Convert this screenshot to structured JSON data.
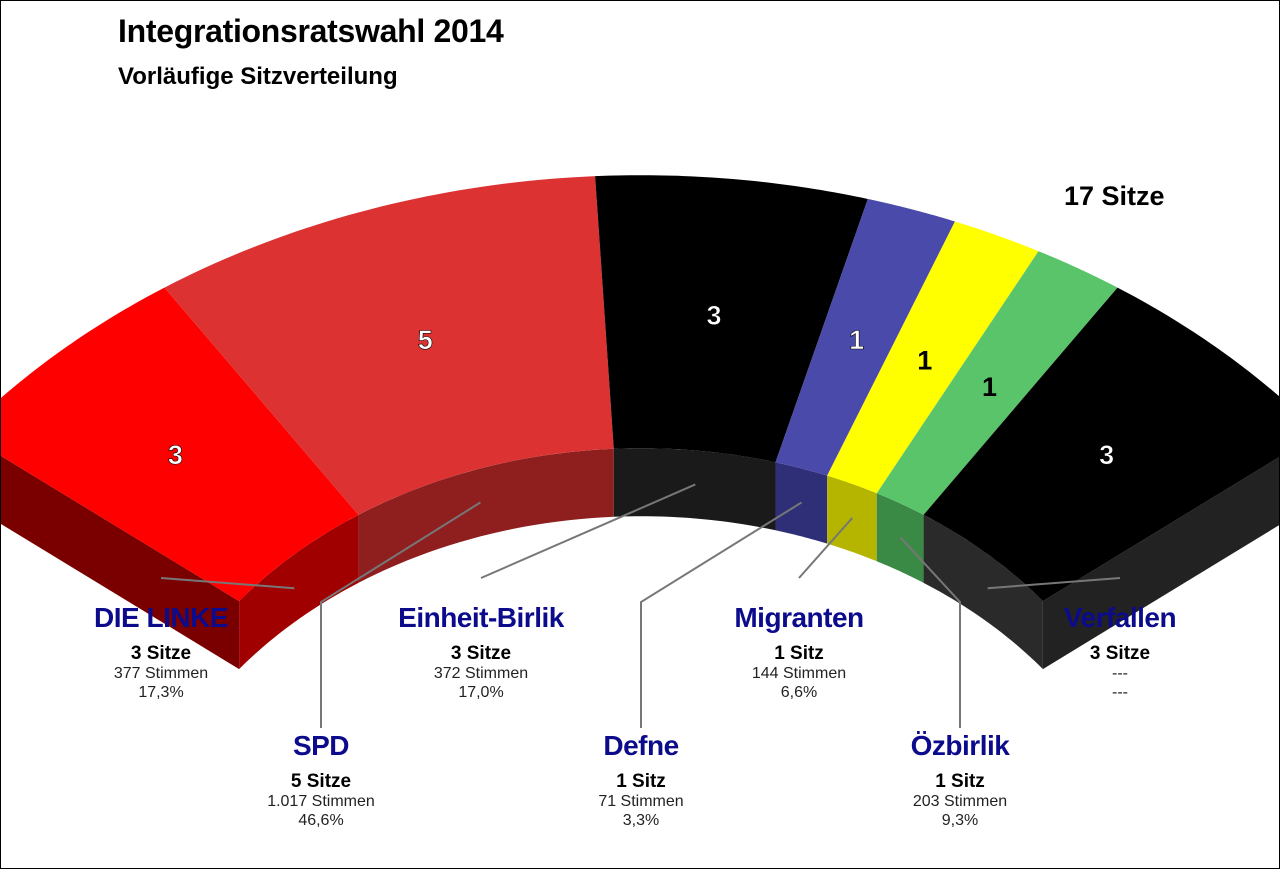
{
  "title": "Integrationsratswahl 2014",
  "subtitle": "Vorläufige Sitzverteilung",
  "total_seats_label": "17 Sitze",
  "chart_data": {
    "type": "pie",
    "title": "Integrationsratswahl 2014",
    "subtitle": "Vorläufige Sitzverteilung",
    "total": 17,
    "categories": [
      "DIE LINKE",
      "SPD",
      "Einheit-Birlik",
      "Defne",
      "Migranten",
      "Özbirlik",
      "Verfallen"
    ],
    "values": [
      3,
      5,
      3,
      1,
      1,
      1,
      3
    ],
    "slices": [
      {
        "name": "DIE LINKE",
        "seats": 3,
        "seat_label": "3",
        "seats_text": "3 Sitze",
        "votes_text": "377 Stimmen",
        "pct_text": "17,3%",
        "color": "#ff0000",
        "side_color": "#a00000",
        "label_color": "#ffffff"
      },
      {
        "name": "SPD",
        "seats": 5,
        "seat_label": "5",
        "seats_text": "5 Sitze",
        "votes_text": "1.017 Stimmen",
        "pct_text": "46,6%",
        "color": "#dc3232",
        "side_color": "#8f1f1f",
        "label_color": "#ffffff"
      },
      {
        "name": "Einheit-Birlik",
        "seats": 3,
        "seat_label": "3",
        "seats_text": "3 Sitze",
        "votes_text": "372 Stimmen",
        "pct_text": "17,0%",
        "color": "#000000",
        "side_color": "#1a1a1a",
        "label_color": "#ffffff"
      },
      {
        "name": "Defne",
        "seats": 1,
        "seat_label": "1",
        "seats_text": "1 Sitz",
        "votes_text": "71 Stimmen",
        "pct_text": "3,3%",
        "color": "#4a4aaa",
        "side_color": "#2f2f78",
        "label_color": "#ffffff"
      },
      {
        "name": "Migranten",
        "seats": 1,
        "seat_label": "1",
        "seats_text": "1 Sitz",
        "votes_text": "144 Stimmen",
        "pct_text": "6,6%",
        "color": "#ffff00",
        "side_color": "#b5b500",
        "label_color": "#000000"
      },
      {
        "name": "Özbirlik",
        "seats": 1,
        "seat_label": "1",
        "seats_text": "1 Sitz",
        "votes_text": "203 Stimmen",
        "pct_text": "9,3%",
        "color": "#5ac46a",
        "side_color": "#3a8a46",
        "label_color": "#000000"
      },
      {
        "name": "Verfallen",
        "seats": 3,
        "seat_label": "3",
        "seats_text": "3 Sitze",
        "votes_text": "---",
        "pct_text": "---",
        "color": "#000000",
        "side_color": "#2a2a2a",
        "label_color": "#ffffff"
      }
    ]
  }
}
